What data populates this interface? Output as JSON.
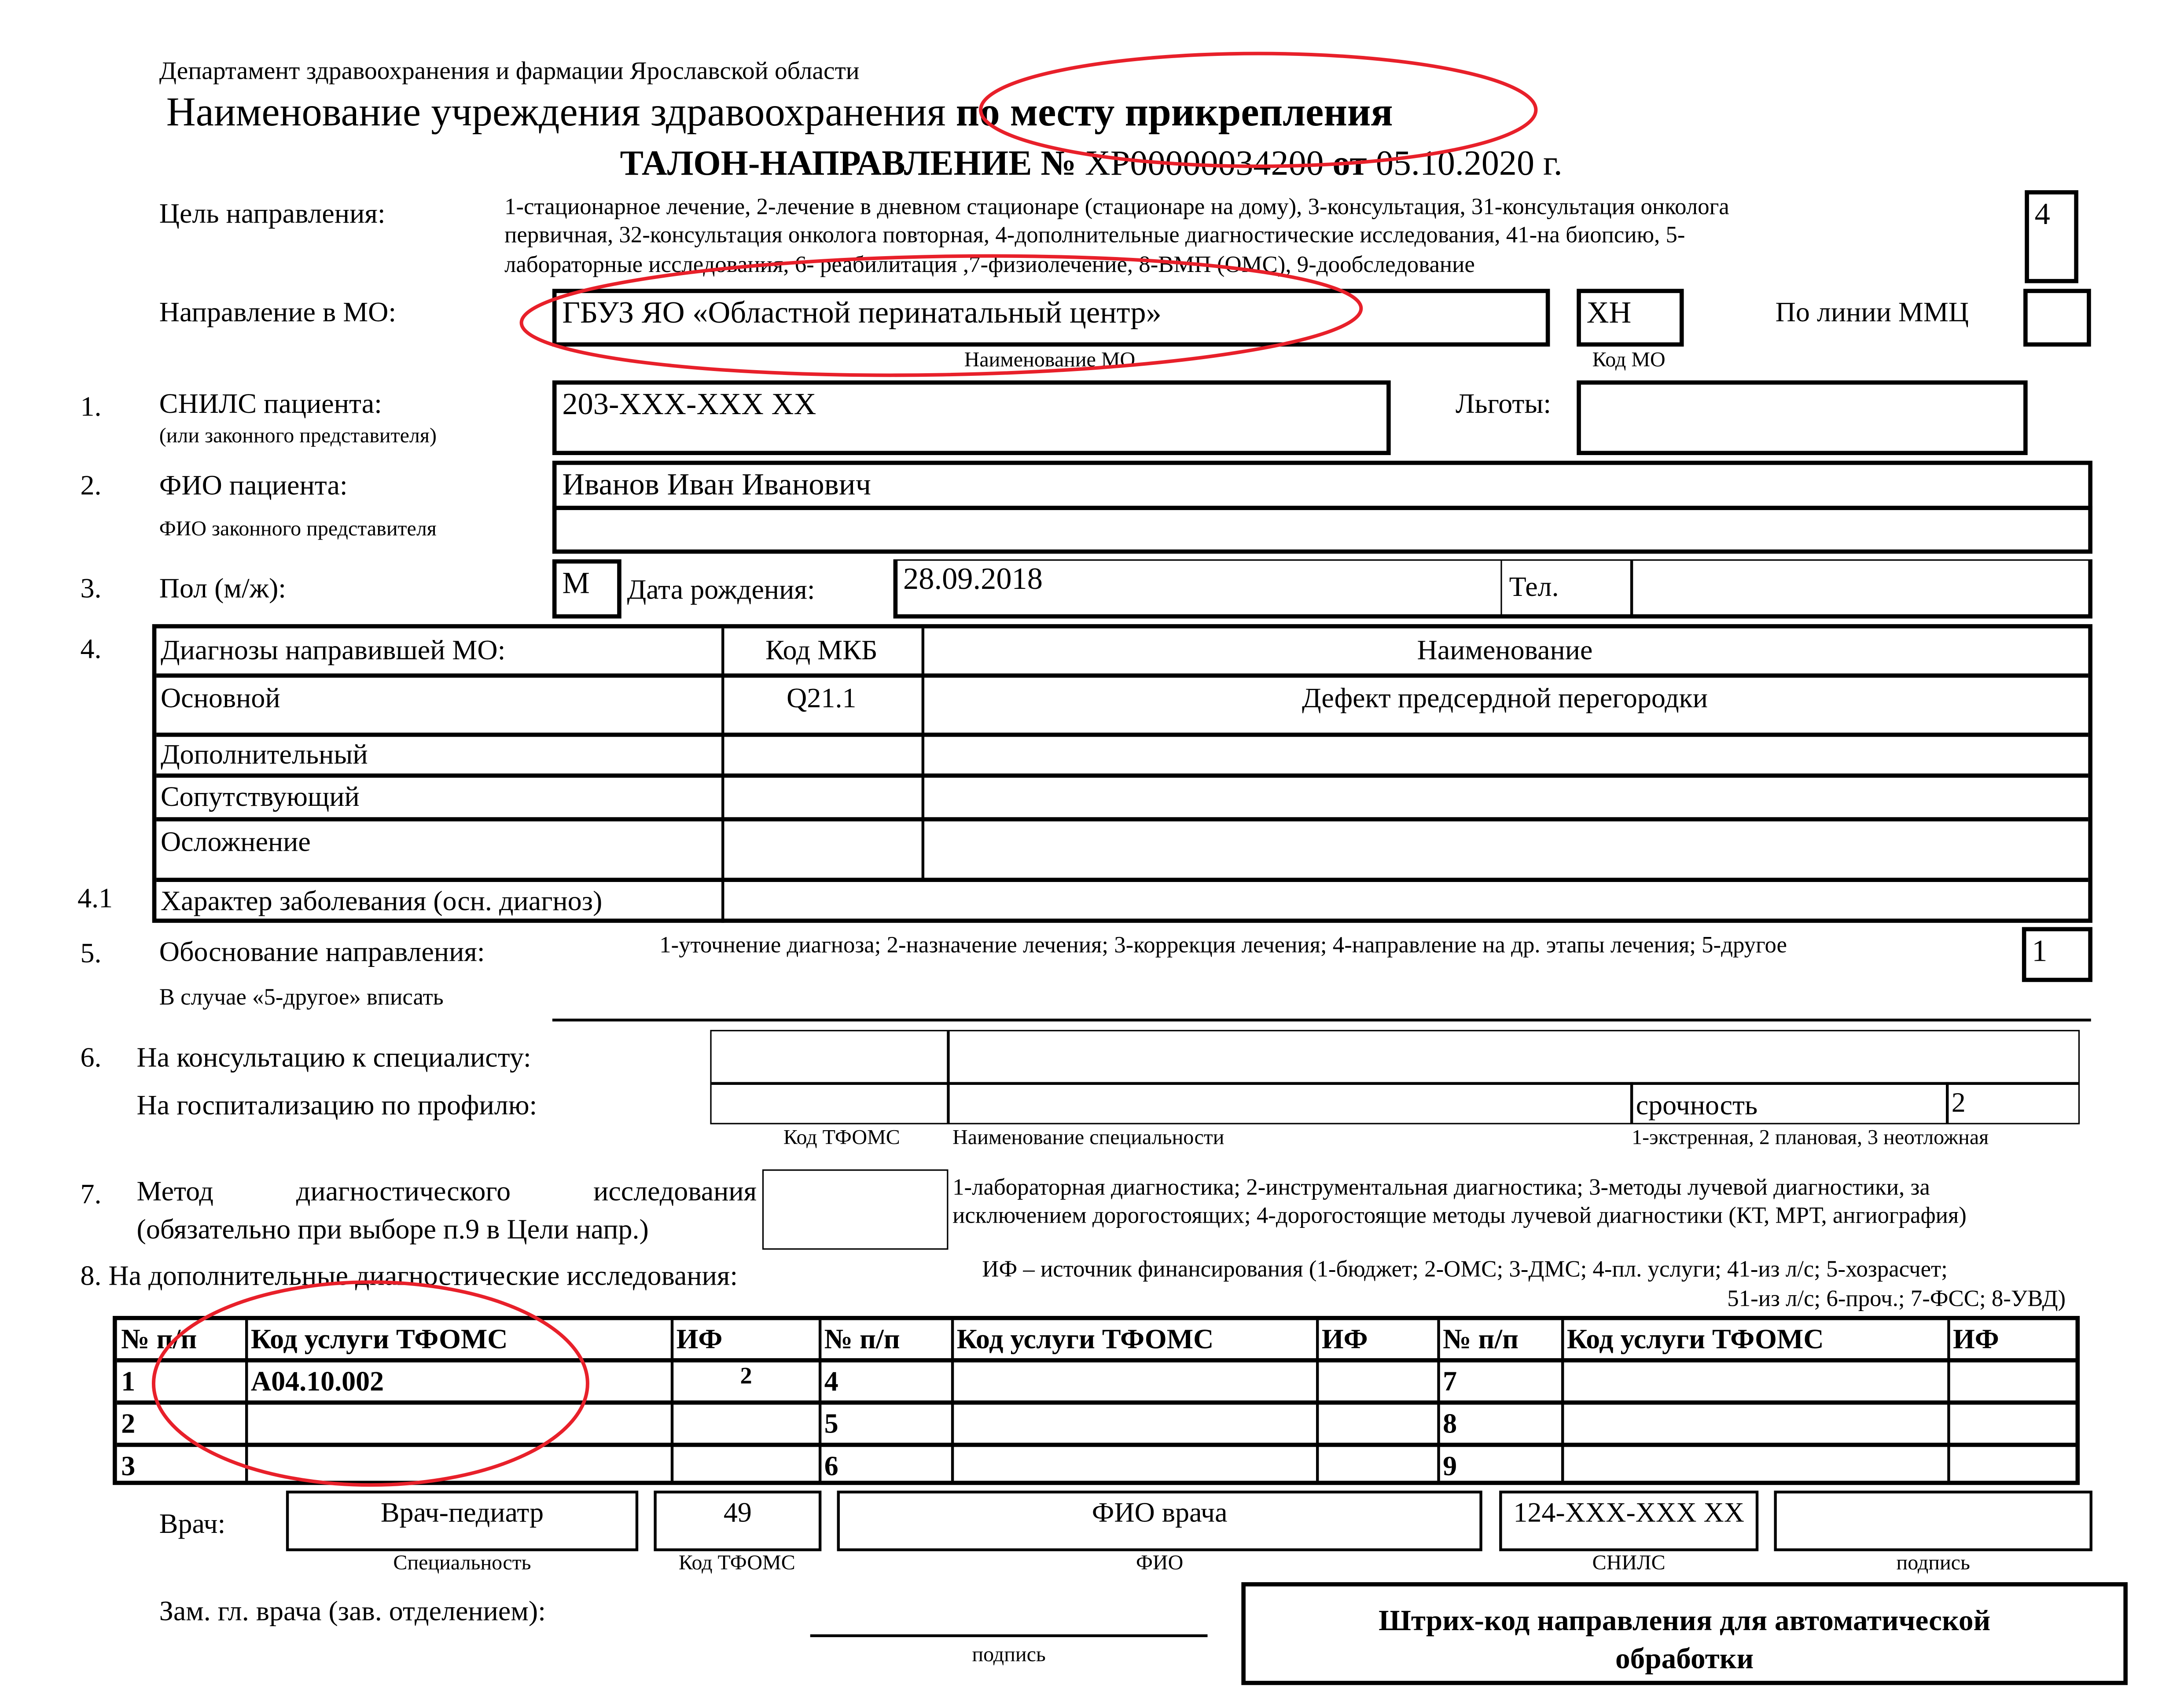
{
  "header": {
    "department": "Департамент здравоохранения и фармации Ярославской области",
    "institution_prefix": "Наименование учреждения здравоохранения ",
    "institution_bold": "по месту прикрепления",
    "title_bold1": "ТАЛОН-НАПРАВЛЕНИЕ № ",
    "number": "ХР00000034200",
    "title_bold2": " от ",
    "date": "05.10.2020 г."
  },
  "purpose": {
    "label": "Цель направления:",
    "lines": [
      "1-стационарное лечение, 2-лечение в дневном стационаре (стационаре на дому), 3-консультация, 31-консультация онколога",
      "первичная, 32-консультация онколога повторная, 4-дополнительные диагностические  исследования, 41-на биопсию, 5-",
      "лабораторные исследования, 6- реабилитация ,7-физиолечение, 8-ВМП (ОМС), 9-дообследование"
    ],
    "value": "4"
  },
  "direction": {
    "label": "Направление в МО:",
    "mo_name": "ГБУЗ ЯО «Областной перинатальный центр»",
    "mo_name_caption": "Наименование МО",
    "mo_code": "ХН",
    "mo_code_caption": "Код МО",
    "mmc_label": "По линии ММЦ",
    "mmc_value": ""
  },
  "snils": {
    "num": "1.",
    "label": "СНИЛС пациента:",
    "sublabel": "(или законного представителя)",
    "value": "203-XXX-XXX XX",
    "benefits_label": "Льготы:",
    "benefits_value": ""
  },
  "fio": {
    "num": "2.",
    "label": "ФИО пациента:",
    "rep_label": "ФИО законного представителя",
    "value": "Иванов Иван Иванович",
    "rep_value": ""
  },
  "sex": {
    "num": "3.",
    "label": "Пол (м/ж):",
    "value": "М",
    "dob_label": "Дата рождения:",
    "dob": "28.09.2018",
    "phone_label": "Тел.",
    "phone": ""
  },
  "diagnoses": {
    "num": "4.",
    "num2": "4.1",
    "headers": [
      "Диагнозы направившей МО:",
      "Код МКБ",
      "Наименование"
    ],
    "rows": [
      [
        "Основной",
        "Q21.1",
        "Дефект предсердной перегородки"
      ],
      [
        "Дополнительный",
        "",
        ""
      ],
      [
        "Сопутствующий",
        "",
        ""
      ],
      [
        "Осложнение",
        "",
        ""
      ]
    ],
    "character_label": "Характер заболевания (осн. диагноз)",
    "character_value": ""
  },
  "justification": {
    "num": "5.",
    "label": "Обоснование направления:",
    "options": "1-уточнение диагноза; 2-назначение лечения; 3-коррекция лечения; 4-направление на др. этапы лечения; 5-другое",
    "value": "1",
    "other_label": "В случае «5-другое» вписать",
    "other_value": ""
  },
  "specialist": {
    "num": "6.",
    "consult_label": "На консультацию к специалисту:",
    "hosp_label": "На госпитализацию по профилю:",
    "urgency_label": "срочность",
    "urgency_value": "2",
    "caption_code": "Код ТФОМС",
    "caption_name": "Наименование специальности",
    "caption_urgency": "1-экстренная, 2 плановая, 3 неотложная"
  },
  "method": {
    "num": "7.",
    "label_line1": "Метод диагностического исследования",
    "label_line2": "(обязательно при выборе п.9 в Цели напр.)",
    "value": "",
    "options_line1": "1-лабораторная диагностика; 2-инструментальная диагностика; 3-методы лучевой диагностики, за",
    "options_line2": "исключением дорогостоящих; 4-дорогостоящие методы лучевой диагностики (КТ, МРТ, ангиография)"
  },
  "extra": {
    "label": "8. На дополнительные диагностические исследования:",
    "if_line1": "ИФ – источник финансирования (1-бюджет; 2-ОМС; 3-ДМС; 4-пл. услуги; 41-из л/с; 5-хозрасчет;",
    "if_line2": "51-из л/с; 6-проч.; 7-ФСС; 8-УВД)",
    "headers": [
      "№ п/п",
      "Код услуги ТФОМС",
      "ИФ",
      "№ п/п",
      "Код услуги ТФОМС",
      "ИФ",
      "№ п/п",
      "Код услуги ТФОМС",
      "ИФ"
    ],
    "rows": [
      [
        "1",
        "A04.10.002",
        "2",
        "4",
        "",
        "",
        "7",
        "",
        ""
      ],
      [
        "2",
        "",
        "",
        "5",
        "",
        "",
        "8",
        "",
        ""
      ],
      [
        "3",
        "",
        "",
        "6",
        "",
        "",
        "9",
        "",
        ""
      ]
    ]
  },
  "doctor": {
    "label": "Врач:",
    "specialty": "Врач-педиатр",
    "code": "49",
    "name": "ФИО врача",
    "snils": "124-XXX-XXX XX",
    "signature": "",
    "captions": [
      "Специальность",
      "Код ТФОМС",
      "ФИО",
      "СНИЛС",
      "подпись"
    ]
  },
  "deputy": {
    "label": "Зам. гл. врача (зав. отделением):",
    "signature_caption": "подпись"
  },
  "barcode": {
    "line1": "Штрих-код направления для автоматической",
    "line2": "обработки"
  },
  "annotation_color": "#e8202a"
}
